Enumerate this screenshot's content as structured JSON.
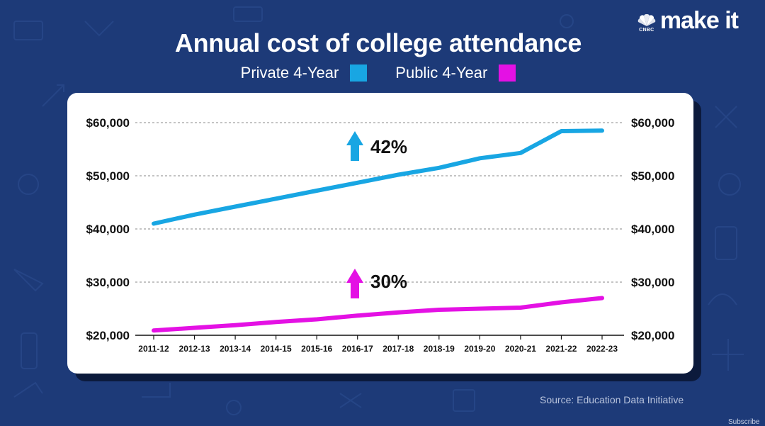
{
  "brand": {
    "network": "CNBC",
    "name": "make it"
  },
  "colors": {
    "background": "#1d3a78",
    "private": "#18a6e3",
    "public": "#e411e4",
    "card": "#ffffff"
  },
  "icons": {
    "logo": "peacock-icon",
    "up_arrow": "up-arrow-icon"
  },
  "chart_data": {
    "type": "line",
    "title": "Annual cost of college attendance",
    "categories": [
      "2011-12",
      "2012-13",
      "2013-14",
      "2014-15",
      "2015-16",
      "2016-17",
      "2017-18",
      "2018-19",
      "2019-20",
      "2020-21",
      "2021-22",
      "2022-23"
    ],
    "series": [
      {
        "name": "Private 4-Year",
        "color": "#18a6e3",
        "values": [
          41000,
          42700,
          44200,
          45700,
          47200,
          48700,
          50200,
          51500,
          53300,
          54300,
          58400,
          58500
        ],
        "annotation": "42%"
      },
      {
        "name": "Public 4-Year",
        "color": "#e411e4",
        "values": [
          20900,
          21400,
          21900,
          22500,
          23000,
          23700,
          24300,
          24800,
          25000,
          25200,
          26200,
          27000
        ],
        "annotation": "30%"
      }
    ],
    "y_ticks": [
      "$20,000",
      "$30,000",
      "$40,000",
      "$50,000",
      "$60,000"
    ],
    "y_tick_values": [
      20000,
      30000,
      40000,
      50000,
      60000
    ],
    "ylim": [
      20000,
      60000
    ],
    "xlabel": "",
    "ylabel": "",
    "grid": "dashed horizontal",
    "legend": "top-center",
    "source": "Source: Education Data Initiative"
  },
  "footer": {
    "subscribe": "Subscribe"
  }
}
